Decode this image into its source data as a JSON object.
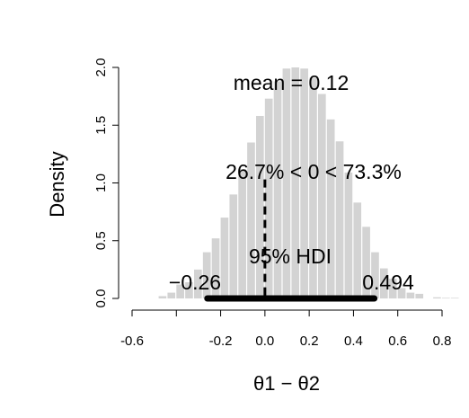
{
  "chart_data": {
    "type": "bar",
    "subtype": "histogram",
    "bins": {
      "start": -0.48,
      "width": 0.04,
      "densities": [
        0.02,
        0.05,
        0.12,
        0.14,
        0.25,
        0.4,
        0.52,
        0.7,
        0.9,
        1.12,
        1.35,
        1.58,
        1.73,
        1.88,
        1.99,
        2.0,
        1.99,
        1.91,
        1.77,
        1.55,
        1.36,
        1.09,
        0.83,
        0.62,
        0.4,
        0.26,
        0.17,
        0.09,
        0.05,
        0.04,
        0.0,
        0.01,
        0.005,
        0.005
      ]
    },
    "bar_color": "#d3d3d3",
    "xlabel": "θ1 − θ2",
    "ylabel": "Density",
    "xlim": [
      -0.6,
      0.8
    ],
    "ylim": [
      0,
      2.05
    ],
    "x_ticks": [
      "-0.6",
      "-0.2",
      "0.0",
      "0.2",
      "0.4",
      "0.6",
      "0.8"
    ],
    "x_tick_values": [
      -0.6,
      -0.2,
      0.0,
      0.2,
      0.4,
      0.6,
      0.8
    ],
    "y_ticks": [
      "0.0",
      "0.5",
      "1.0",
      "1.5",
      "2.0"
    ],
    "y_tick_values": [
      0.0,
      0.5,
      1.0,
      1.5,
      2.0
    ],
    "hdi": {
      "low": -0.26,
      "high": 0.494,
      "label": "95% HDI",
      "low_label": "−0.26",
      "high_label": "0.494"
    },
    "comparison": {
      "value": 0,
      "label": "26.7% < 0 < 73.3%"
    },
    "mean": {
      "value": 0.12,
      "label": "mean = 0.12"
    }
  }
}
